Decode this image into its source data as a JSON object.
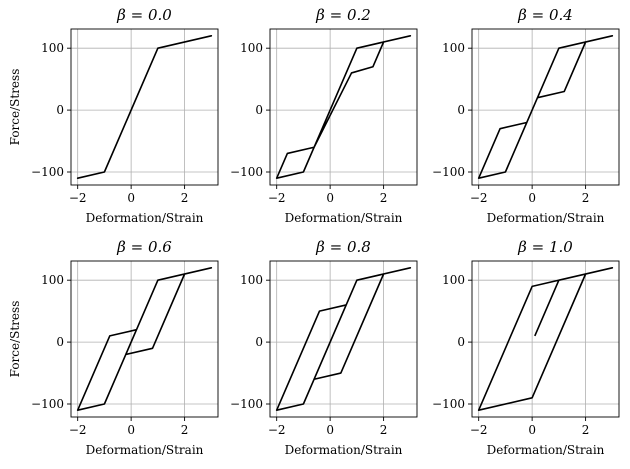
{
  "chart_data": [
    {
      "type": "line",
      "title": "β = 0.0",
      "xlabel": "Deformation/Strain",
      "ylabel": "Force/Stress",
      "xlim": [
        -2.25,
        3.25
      ],
      "ylim": [
        -121,
        131
      ],
      "xticks": [
        -2,
        0,
        2
      ],
      "yticks": [
        -100,
        0,
        100
      ],
      "grid": true,
      "series": [
        {
          "x": [
            0,
            1,
            3,
            1,
            -1,
            -2,
            -1,
            1
          ],
          "y": [
            0,
            100,
            120,
            100,
            -100,
            -110,
            -100,
            100
          ]
        }
      ]
    },
    {
      "type": "line",
      "title": "β = 0.2",
      "xlabel": "Deformation/Strain",
      "ylabel": "",
      "xlim": [
        -2.25,
        3.25
      ],
      "ylim": [
        -121,
        131
      ],
      "xticks": [
        -2,
        0,
        2
      ],
      "yticks": [
        -100,
        0,
        100
      ],
      "grid": true,
      "series": [
        {
          "x": [
            0,
            1,
            3,
            2,
            1.6,
            0.8,
            -0.6,
            -1.6,
            -2,
            -1,
            0.2,
            1,
            2
          ],
          "y": [
            0,
            100,
            120,
            110,
            70,
            60,
            -60,
            -70,
            -110,
            -100,
            20,
            100,
            110
          ]
        }
      ]
    },
    {
      "type": "line",
      "title": "β = 0.4",
      "xlabel": "Deformation/Strain",
      "ylabel": "",
      "xlim": [
        -2.25,
        3.25
      ],
      "ylim": [
        -121,
        131
      ],
      "xticks": [
        -2,
        0,
        2
      ],
      "yticks": [
        -100,
        0,
        100
      ],
      "grid": true,
      "series": [
        {
          "x": [
            0,
            1,
            3,
            2,
            1.2,
            0.2,
            -0.2,
            -1.2,
            -2,
            -1,
            0.2,
            1,
            2
          ],
          "y": [
            0,
            100,
            120,
            110,
            30,
            20,
            -20,
            -30,
            -110,
            -100,
            20,
            100,
            110
          ]
        }
      ]
    },
    {
      "type": "line",
      "title": "β = 0.6",
      "xlabel": "Deformation/Strain",
      "ylabel": "Force/Stress",
      "xlim": [
        -2.25,
        3.25
      ],
      "ylim": [
        -121,
        131
      ],
      "xticks": [
        -2,
        0,
        2
      ],
      "yticks": [
        -100,
        0,
        100
      ],
      "grid": true,
      "series": [
        {
          "x": [
            0.1,
            1,
            3,
            2,
            0.8,
            -0.2,
            0.2,
            -0.8,
            -2,
            -1,
            0.1,
            1,
            2
          ],
          "y": [
            10,
            100,
            120,
            110,
            -10,
            -20,
            20,
            10,
            -110,
            -100,
            10,
            100,
            110
          ]
        }
      ]
    },
    {
      "type": "line",
      "title": "β = 0.8",
      "xlabel": "Deformation/Strain",
      "ylabel": "",
      "xlim": [
        -2.25,
        3.25
      ],
      "ylim": [
        -121,
        131
      ],
      "xticks": [
        -2,
        0,
        2
      ],
      "yticks": [
        -100,
        0,
        100
      ],
      "grid": true,
      "series": [
        {
          "x": [
            0.1,
            1,
            3,
            2,
            0.4,
            -0.6,
            0.6,
            -0.4,
            -2,
            -1,
            0.1,
            1,
            2
          ],
          "y": [
            10,
            100,
            120,
            110,
            -50,
            -60,
            60,
            50,
            -110,
            -100,
            10,
            100,
            110
          ]
        }
      ]
    },
    {
      "type": "line",
      "title": "β = 1.0",
      "xlabel": "Deformation/Strain",
      "ylabel": "",
      "xlim": [
        -2.25,
        3.25
      ],
      "ylim": [
        -121,
        131
      ],
      "xticks": [
        -2,
        0,
        2
      ],
      "yticks": [
        -100,
        0,
        100
      ],
      "grid": true,
      "series": [
        {
          "x": [
            0.1,
            1,
            3,
            2,
            0,
            -2,
            0,
            2
          ],
          "y": [
            10,
            100,
            120,
            110,
            -90,
            -110,
            90,
            110
          ]
        }
      ]
    }
  ]
}
